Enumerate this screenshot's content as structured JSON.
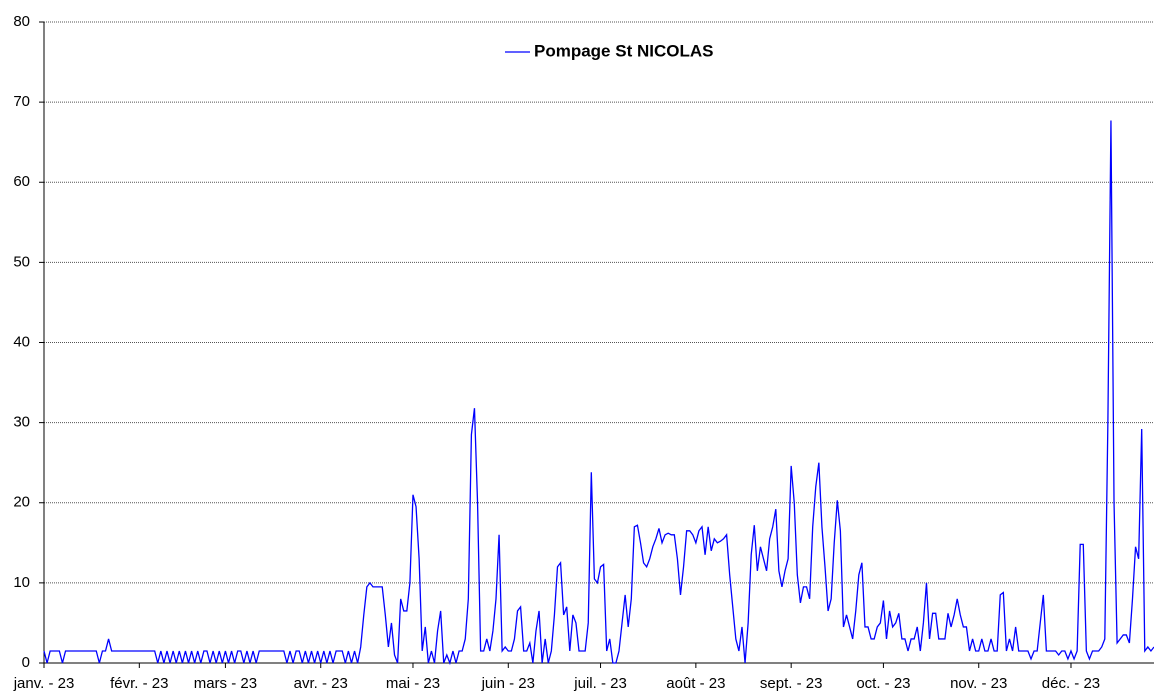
{
  "chart_data": {
    "type": "line",
    "series": [
      {
        "name": "Pompage St NICOLAS",
        "color": "#0000ff",
        "values": [
          1.5,
          0,
          1.5,
          1.5,
          1.5,
          1.5,
          0,
          1.5,
          1.5,
          1.5,
          1.5,
          1.5,
          1.5,
          1.5,
          1.5,
          1.5,
          1.5,
          1.5,
          0,
          1.5,
          1.5,
          3,
          1.5,
          1.5,
          1.5,
          1.5,
          1.5,
          1.5,
          1.5,
          1.5,
          1.5,
          1.5,
          1.5,
          1.5,
          1.5,
          1.5,
          1.5,
          0,
          1.5,
          0,
          1.5,
          0,
          1.5,
          0,
          1.5,
          0,
          1.5,
          0,
          1.5,
          0,
          1.5,
          0,
          1.5,
          1.5,
          0,
          1.5,
          0,
          1.5,
          0,
          1.5,
          0,
          1.5,
          0,
          1.5,
          1.5,
          0,
          1.5,
          0,
          1.5,
          0,
          1.5,
          1.5,
          1.5,
          1.5,
          1.5,
          1.5,
          1.5,
          1.5,
          1.5,
          0,
          1.5,
          0,
          1.5,
          1.5,
          0,
          1.5,
          0,
          1.5,
          0,
          1.5,
          0,
          1.5,
          0,
          1.5,
          0,
          1.5,
          1.5,
          1.5,
          0,
          1.5,
          0,
          1.5,
          0,
          2,
          6,
          9.5,
          10,
          9.5,
          9.5,
          9.5,
          9.5,
          6,
          2,
          5,
          1,
          0,
          8,
          6.5,
          6.5,
          10,
          21,
          19.5,
          13,
          1.5,
          4.5,
          0,
          1.5,
          0,
          4,
          6.5,
          0,
          1,
          0,
          1.5,
          0,
          1.5,
          1.5,
          3,
          8,
          28.5,
          31.8,
          20,
          1.5,
          1.5,
          3,
          1.5,
          4,
          8,
          16,
          1.5,
          2,
          1.5,
          1.5,
          3,
          6.5,
          7,
          1.5,
          1.5,
          2.5,
          0,
          4,
          6.5,
          0,
          3,
          0,
          1.5,
          6,
          12,
          12.5,
          6,
          7,
          1.5,
          6,
          5,
          1.5,
          1.5,
          1.5,
          5,
          23.8,
          10.5,
          10,
          12,
          12.3,
          1.5,
          3,
          0,
          0,
          1.5,
          5,
          8.5,
          4.5,
          8,
          17,
          17.2,
          15,
          12.5,
          12,
          13,
          14.5,
          15.5,
          16.8,
          15,
          16,
          16.2,
          16,
          16,
          13,
          8.5,
          12,
          16.5,
          16.5,
          16,
          15,
          16.5,
          17,
          13.5,
          17,
          14,
          15.5,
          15,
          15.2,
          15.5,
          16,
          11,
          7,
          3,
          1.5,
          4.5,
          0,
          5,
          13.5,
          17.2,
          11.5,
          14.5,
          13,
          11.5,
          15.5,
          17,
          19.2,
          11.5,
          9.5,
          11.5,
          13,
          24.6,
          20,
          11,
          7.5,
          9.5,
          9.5,
          8,
          17,
          22,
          25,
          17,
          12,
          6.5,
          8,
          15,
          20.3,
          16.5,
          4.5,
          6,
          4.5,
          3,
          6.5,
          11,
          12.5,
          4.5,
          4.5,
          3,
          3,
          4.5,
          5,
          7.8,
          3,
          6.5,
          4.5,
          5,
          6.2,
          3,
          3,
          1.5,
          3,
          3,
          4.5,
          1.5,
          5,
          10,
          3,
          6.2,
          6.2,
          3,
          3,
          3,
          6.2,
          4.5,
          6,
          8,
          6,
          4.5,
          4.5,
          1.5,
          3,
          1.5,
          1.5,
          3,
          1.5,
          1.5,
          3,
          1.5,
          1.5,
          8.5,
          8.8,
          1.5,
          3,
          1.5,
          4.5,
          1.5,
          1.5,
          1.5,
          1.5,
          0.5,
          1.5,
          1.5,
          5,
          8.5,
          1.5,
          1.5,
          1.5,
          1.5,
          1,
          1.5,
          1.5,
          0.5,
          1.5,
          0.5,
          1.5,
          14.8,
          14.8,
          1.5,
          0.5,
          1.5,
          1.5,
          1.5,
          2,
          3,
          30,
          67.7,
          20,
          2.5,
          3,
          3.5,
          3.5,
          2.5,
          8,
          14.5,
          13,
          29.2,
          1.5,
          2,
          1.5,
          2
        ]
      }
    ],
    "xlim": [
      0,
      361
    ],
    "xticks": [
      {
        "value": 0,
        "label": "janv. - 23"
      },
      {
        "value": 31,
        "label": "févr. - 23"
      },
      {
        "value": 59,
        "label": "mars - 23"
      },
      {
        "value": 90,
        "label": "avr. - 23"
      },
      {
        "value": 120,
        "label": "mai - 23"
      },
      {
        "value": 151,
        "label": "juin - 23"
      },
      {
        "value": 181,
        "label": "juil. - 23"
      },
      {
        "value": 212,
        "label": "août - 23"
      },
      {
        "value": 243,
        "label": "sept. - 23"
      },
      {
        "value": 273,
        "label": "oct. - 23"
      },
      {
        "value": 304,
        "label": "nov. - 23"
      },
      {
        "value": 334,
        "label": "déc. - 23"
      }
    ],
    "ylim": [
      0,
      80
    ],
    "yticks": [
      0,
      10,
      20,
      30,
      40,
      50,
      60,
      70,
      80
    ],
    "grid": true,
    "legend": "top"
  }
}
